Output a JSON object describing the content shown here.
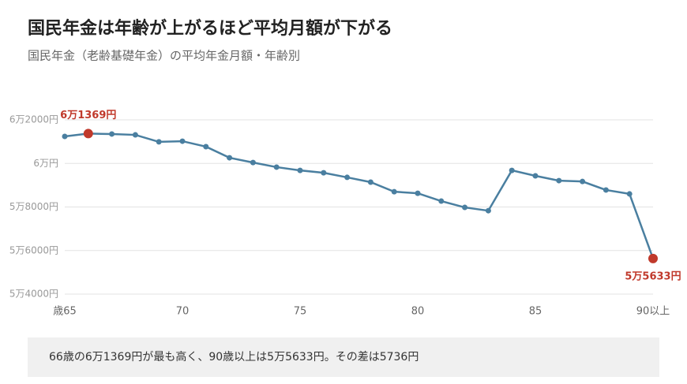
{
  "chart_data": {
    "type": "line",
    "title": "国民年金は年齢が上がるほど平均月額が下がる",
    "subtitle": "国民年金（老齢基礎年金）の平均年金月額・年齢別",
    "x": [
      65,
      66,
      67,
      68,
      69,
      70,
      71,
      72,
      73,
      74,
      75,
      76,
      77,
      78,
      79,
      80,
      81,
      82,
      83,
      84,
      85,
      86,
      87,
      88,
      89,
      90
    ],
    "series": [
      {
        "color": "#4a7fa0",
        "values": [
          61240,
          61369,
          61350,
          61310,
          60990,
          61020,
          60770,
          60260,
          60040,
          59830,
          59680,
          59570,
          59360,
          59140,
          58700,
          58630,
          58270,
          57980,
          57830,
          59680,
          59430,
          59210,
          59170,
          58780,
          58600,
          55633
        ],
        "value_labels": [
          null,
          "6万1369円",
          null,
          null,
          null,
          null,
          null,
          null,
          null,
          null,
          null,
          null,
          null,
          null,
          null,
          null,
          null,
          null,
          null,
          null,
          null,
          null,
          null,
          null,
          null,
          "5万5633円"
        ]
      }
    ],
    "highlight_color": "#c0392b",
    "xlim": [
      65,
      90
    ],
    "xticks": [
      {
        "value": 65,
        "label": "歳65"
      },
      70,
      75,
      80,
      85,
      {
        "value": 90,
        "label": "90以上"
      }
    ],
    "ylim": [
      54000,
      62000
    ],
    "yticks": [
      {
        "value": 54000,
        "label": "5万4000円"
      },
      {
        "value": 56000,
        "label": "5万6000円"
      },
      {
        "value": 58000,
        "label": "5万8000円"
      },
      {
        "value": 60000,
        "label": "6万円"
      },
      {
        "value": 62000,
        "label": "6万2000円"
      }
    ],
    "grid": true,
    "note": "66歳の6万1369円が最も高く、90歳以上は5万5633円。その差は5736円"
  }
}
